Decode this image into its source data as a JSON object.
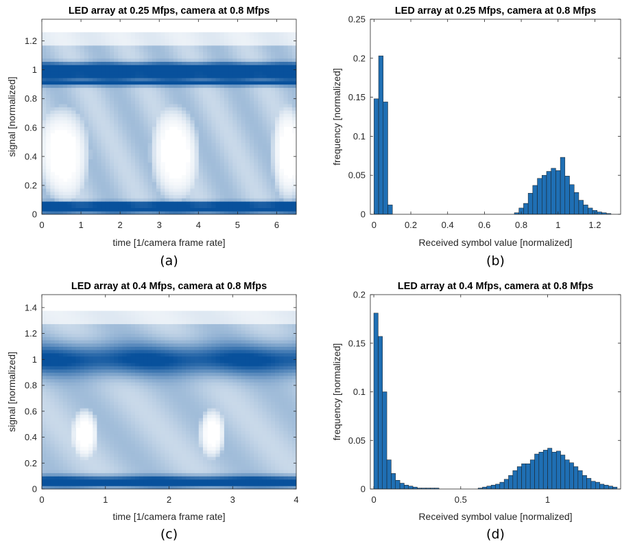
{
  "chart_data": [
    {
      "panel_label": "(a)",
      "type": "heatmap",
      "title": "LED array at 0.25 Mfps, camera at 0.8 Mfps",
      "xlabel": "time [1/camera frame rate]",
      "ylabel": "signal [normalized]",
      "xlim": [
        0,
        6.5
      ],
      "ylim": [
        0,
        1.35
      ],
      "xticks": [
        0,
        1,
        2,
        3,
        4,
        5,
        6
      ],
      "xtick_labels": [
        "0",
        "1",
        "2",
        "3",
        "4",
        "5",
        "6"
      ],
      "yticks": [
        0,
        0.2,
        0.4,
        0.6,
        0.8,
        1,
        1.2
      ],
      "ytick_labels": [
        "0",
        "0.2",
        "0.4",
        "0.6",
        "0.8",
        "1",
        "1.2"
      ],
      "colormap": [
        "#ffffff",
        "#08519c"
      ],
      "levels": [
        {
          "y": 0.03,
          "width": 0.02,
          "intensity": 1.0
        },
        {
          "y": 0.07,
          "width": 0.02,
          "intensity": 0.85
        },
        {
          "y": 0.905,
          "width": 0.012,
          "intensity": 0.95
        },
        {
          "y": 0.96,
          "width": 0.045,
          "intensity": 0.75
        },
        {
          "y": 1.02,
          "width": 0.03,
          "intensity": 0.9
        }
      ],
      "eye_openings": [
        {
          "x": 0.55,
          "y": 0.42,
          "x_radius": 0.7,
          "y_radius": 0.34
        },
        {
          "x": 3.4,
          "y": 0.42,
          "x_radius": 0.65,
          "y_radius": 0.34
        },
        {
          "x": 6.3,
          "y": 0.42,
          "x_radius": 0.45,
          "y_radius": 0.34
        }
      ],
      "signal_max": 1.26
    },
    {
      "panel_label": "(b)",
      "type": "bar",
      "title": "LED array at 0.25 Mfps, camera at 0.8 Mfps",
      "xlabel": "Received symbol value [normalized]",
      "ylabel": "frequency [normalized]",
      "xlim": [
        -0.02,
        1.34
      ],
      "ylim": [
        0,
        0.25
      ],
      "xticks": [
        0,
        0.2,
        0.4,
        0.6,
        0.8,
        1,
        1.2
      ],
      "xtick_labels": [
        "0",
        "0.2",
        "0.4",
        "0.6",
        "0.8",
        "1",
        "1.2"
      ],
      "yticks": [
        0,
        0.05,
        0.1,
        0.15,
        0.2,
        0.25
      ],
      "ytick_labels": [
        "0",
        "0.05",
        "0.1",
        "0.15",
        "0.2",
        "0.25"
      ],
      "bar_color": "#1f6fb4",
      "bin_width": 0.025,
      "x": [
        0.0125,
        0.0375,
        0.0625,
        0.0875,
        0.775,
        0.8,
        0.825,
        0.85,
        0.875,
        0.9,
        0.925,
        0.95,
        0.975,
        1.0,
        1.025,
        1.05,
        1.075,
        1.1,
        1.125,
        1.15,
        1.175,
        1.2,
        1.225,
        1.25,
        1.275
      ],
      "values": [
        0.148,
        0.203,
        0.144,
        0.012,
        0.002,
        0.008,
        0.014,
        0.027,
        0.037,
        0.046,
        0.05,
        0.055,
        0.059,
        0.056,
        0.073,
        0.049,
        0.038,
        0.028,
        0.018,
        0.012,
        0.008,
        0.005,
        0.003,
        0.002,
        0.001
      ]
    },
    {
      "panel_label": "(c)",
      "type": "heatmap",
      "title": "LED array at 0.4 Mfps, camera at 0.8 Mfps",
      "xlabel": "time [1/camera frame rate]",
      "ylabel": "signal [normalized]",
      "xlim": [
        0,
        4
      ],
      "ylim": [
        0,
        1.5
      ],
      "xticks": [
        0,
        1,
        2,
        3,
        4
      ],
      "xtick_labels": [
        "0",
        "1",
        "2",
        "3",
        "4"
      ],
      "yticks": [
        0,
        0.2,
        0.4,
        0.6,
        0.8,
        1,
        1.2,
        1.4
      ],
      "ytick_labels": [
        "0",
        "0.2",
        "0.4",
        "0.6",
        "0.8",
        "1",
        "1.2",
        "1.4"
      ],
      "colormap": [
        "#ffffff",
        "#08519c"
      ],
      "levels": [
        {
          "y": 0.04,
          "width": 0.025,
          "intensity": 1.0
        },
        {
          "y": 0.08,
          "width": 0.03,
          "intensity": 0.6
        },
        {
          "y": 1.0,
          "width": 0.12,
          "intensity": 0.7
        }
      ],
      "eye_openings": [
        {
          "x": 0.68,
          "y": 0.43,
          "x_radius": 0.22,
          "y_radius": 0.2
        },
        {
          "x": 2.68,
          "y": 0.43,
          "x_radius": 0.22,
          "y_radius": 0.2
        }
      ],
      "signal_max": 1.38
    },
    {
      "panel_label": "(d)",
      "type": "bar",
      "title": "LED array at 0.4 Mfps, camera at 0.8 Mfps",
      "xlabel": "Received symbol value [normalized]",
      "ylabel": "frequency [normalized]",
      "xlim": [
        -0.02,
        1.42
      ],
      "ylim": [
        0,
        0.2
      ],
      "xticks": [
        0,
        0.5,
        1
      ],
      "xtick_labels": [
        "0",
        "0.5",
        "1"
      ],
      "yticks": [
        0,
        0.05,
        0.1,
        0.15,
        0.2
      ],
      "ytick_labels": [
        "0",
        "0.05",
        "0.1",
        "0.15",
        "0.2"
      ],
      "bar_color": "#1f6fb4",
      "bin_width": 0.025,
      "x": [
        0.0125,
        0.0375,
        0.0625,
        0.0875,
        0.1125,
        0.1375,
        0.1625,
        0.1875,
        0.2125,
        0.2375,
        0.2625,
        0.2875,
        0.3125,
        0.3375,
        0.3625,
        0.6125,
        0.6375,
        0.6625,
        0.6875,
        0.7125,
        0.7375,
        0.7625,
        0.7875,
        0.8125,
        0.8375,
        0.8625,
        0.8875,
        0.9125,
        0.9375,
        0.9625,
        0.9875,
        1.0125,
        1.0375,
        1.0625,
        1.0875,
        1.1125,
        1.1375,
        1.1625,
        1.1875,
        1.2125,
        1.2375,
        1.2625,
        1.2875,
        1.3125,
        1.3375,
        1.3625,
        1.3875
      ],
      "values": [
        0.181,
        0.157,
        0.1,
        0.03,
        0.016,
        0.009,
        0.006,
        0.004,
        0.003,
        0.002,
        0.001,
        0.001,
        0.001,
        0.001,
        0.001,
        0.001,
        0.002,
        0.003,
        0.004,
        0.005,
        0.007,
        0.01,
        0.014,
        0.019,
        0.023,
        0.026,
        0.026,
        0.03,
        0.036,
        0.038,
        0.04,
        0.042,
        0.038,
        0.039,
        0.035,
        0.03,
        0.027,
        0.023,
        0.019,
        0.014,
        0.011,
        0.008,
        0.007,
        0.005,
        0.004,
        0.003,
        0.002
      ]
    }
  ]
}
